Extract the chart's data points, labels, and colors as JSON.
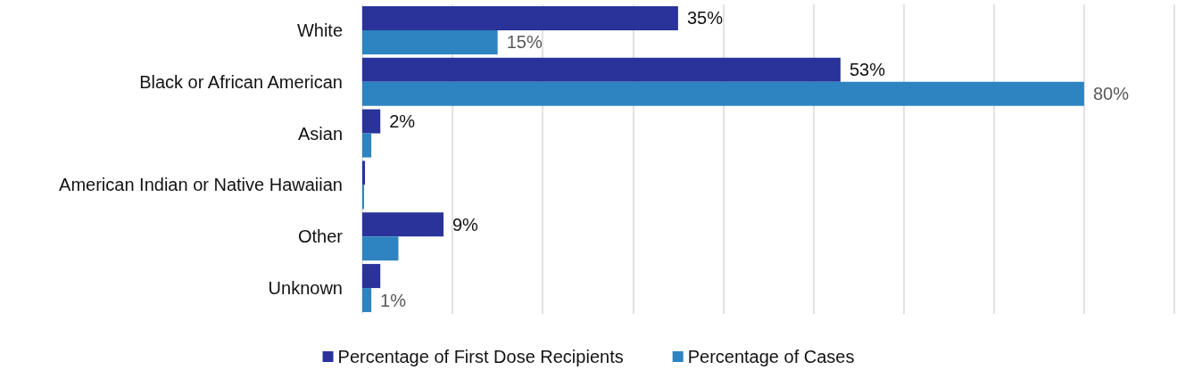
{
  "chart_data": {
    "type": "bar",
    "orientation": "horizontal",
    "categories": [
      "White",
      "Black or African American",
      "Asian",
      "American Indian or Native Hawaiian",
      "Other",
      "Unknown"
    ],
    "series": [
      {
        "name": "Percentage of First Dose Recipients",
        "color": "#29339a",
        "values": [
          35,
          53,
          2,
          0.3,
          9,
          2
        ],
        "value_labels": [
          "35%",
          "53%",
          "2%",
          null,
          "9%",
          null
        ]
      },
      {
        "name": "Percentage of Cases",
        "color": "#2e84c0",
        "values": [
          15,
          80,
          1,
          0.2,
          4,
          1
        ],
        "value_labels": [
          "15%",
          "80%",
          null,
          null,
          null,
          "1%"
        ]
      }
    ],
    "xlim": [
      0,
      90
    ],
    "xticks": [
      {
        "value": 0,
        "label": null
      },
      {
        "value": 10,
        "label": null
      },
      {
        "value": 20,
        "label": null
      },
      {
        "value": 30,
        "label": null
      },
      {
        "value": 40,
        "label": null
      },
      {
        "value": 50,
        "label": null
      },
      {
        "value": 60,
        "label": null
      },
      {
        "value": 70,
        "label": null
      },
      {
        "value": 80,
        "label": null
      },
      {
        "value": 90,
        "label": null
      }
    ],
    "grid": "x",
    "legend": "bottom"
  }
}
